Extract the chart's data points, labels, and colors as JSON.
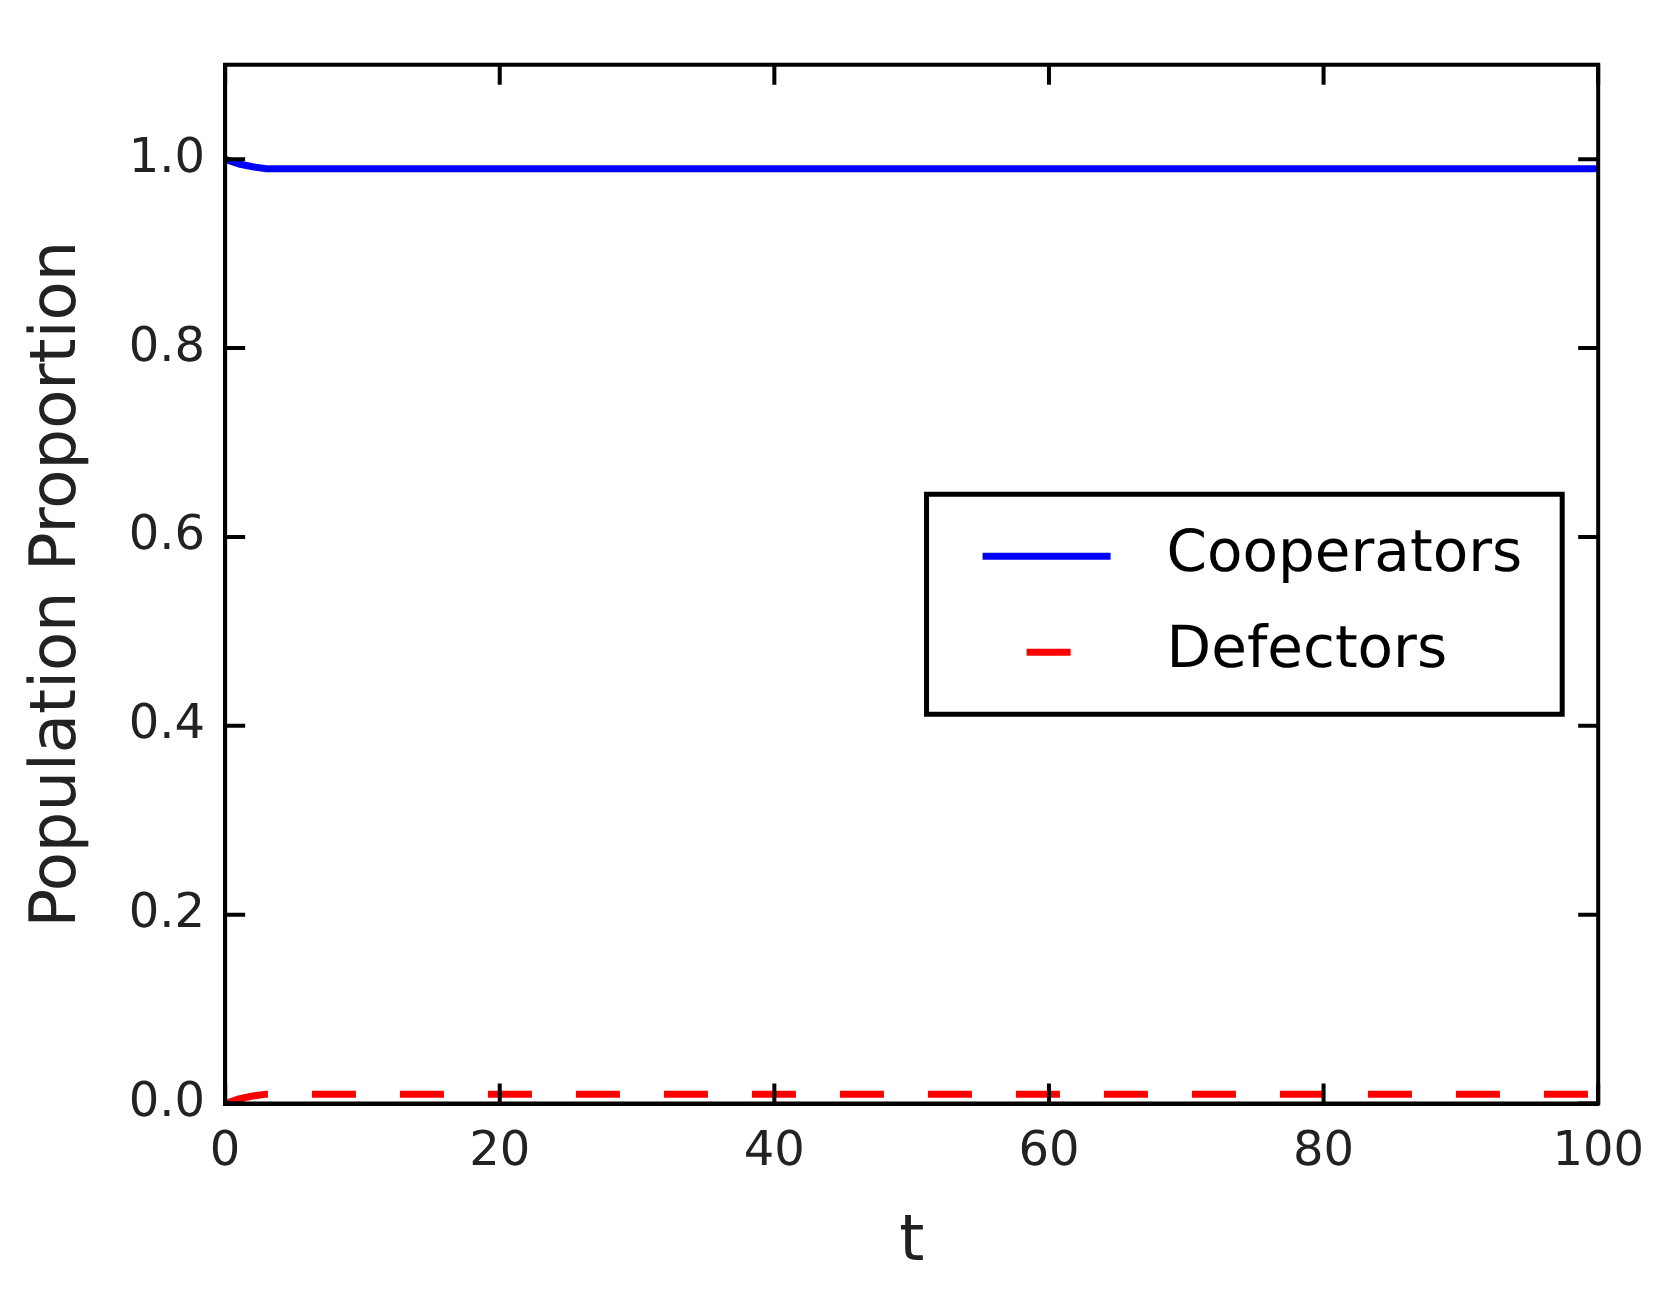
{
  "chart_data": {
    "type": "line",
    "xlabel": "t",
    "ylabel": "Population Proportion",
    "xlim": [
      0,
      100
    ],
    "ylim": [
      0,
      1.1
    ],
    "xticks": [
      0,
      20,
      40,
      60,
      80,
      100
    ],
    "yticks": [
      {
        "value": 0,
        "label": "0.0"
      },
      {
        "value": 0.2,
        "label": "0.2"
      },
      {
        "value": 0.4,
        "label": "0.4"
      },
      {
        "value": 0.6,
        "label": "0.6"
      },
      {
        "value": 0.8,
        "label": "0.8"
      },
      {
        "value": 1.0,
        "label": "1.0"
      }
    ],
    "grid": false,
    "legend": "right",
    "marker": "none",
    "x": [
      0,
      1,
      2,
      3,
      5,
      10,
      20,
      30,
      40,
      50,
      60,
      70,
      80,
      90,
      100
    ],
    "series": [
      {
        "name": "Cooperators",
        "color": "#0000ff",
        "line_style": "solid",
        "values": [
          1.0,
          0.995,
          0.992,
          0.99,
          0.99,
          0.99,
          0.99,
          0.99,
          0.99,
          0.99,
          0.99,
          0.99,
          0.99,
          0.99,
          0.99
        ]
      },
      {
        "name": "Defectors",
        "color": "#ff0000",
        "line_style": "dashed",
        "values": [
          0.0,
          0.005,
          0.008,
          0.01,
          0.01,
          0.01,
          0.01,
          0.01,
          0.01,
          0.01,
          0.01,
          0.01,
          0.01,
          0.01,
          0.01
        ]
      }
    ]
  }
}
